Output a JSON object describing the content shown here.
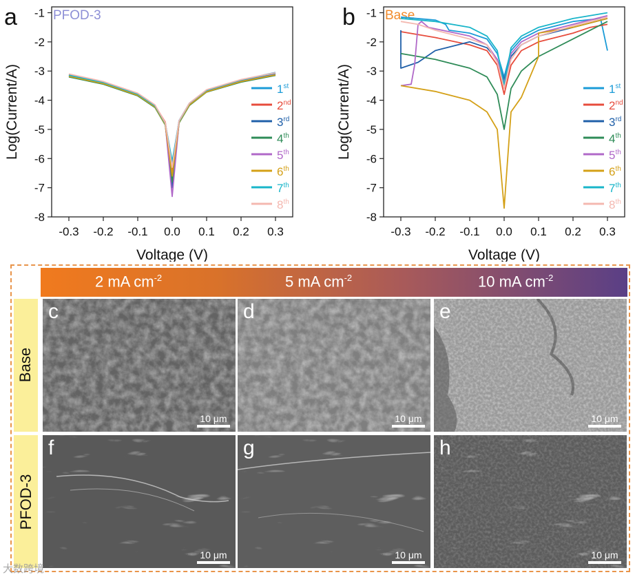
{
  "panels": {
    "a": {
      "letter": "a",
      "tag": "PFOD-3",
      "tag_color": "#8d8fd6"
    },
    "b": {
      "letter": "b",
      "tag": "Base",
      "tag_color": "#f08a2a"
    }
  },
  "chart_data": [
    {
      "type": "line",
      "panel": "a",
      "title": "PFOD-3",
      "xlabel": "Voltage (V)",
      "ylabel": "Log(Current/A)",
      "xlim": [
        -0.35,
        0.35
      ],
      "ylim": [
        -8,
        -0.8
      ],
      "xticks": [
        "-0.3",
        "-0.2",
        "-0.1",
        "0.0",
        "0.1",
        "0.2",
        "0.3"
      ],
      "yticks": [
        "-1",
        "-2",
        "-3",
        "-4",
        "-5",
        "-6",
        "-7",
        "-8"
      ],
      "legend_position": "right",
      "series": [
        {
          "name": "1st",
          "color": "#1b9bd7",
          "x": [
            -0.3,
            -0.2,
            -0.1,
            -0.05,
            -0.02,
            0.0,
            0.02,
            0.05,
            0.1,
            0.2,
            0.3
          ],
          "y": [
            -3.15,
            -3.4,
            -3.8,
            -4.2,
            -4.8,
            -6.2,
            -4.7,
            -4.1,
            -3.65,
            -3.3,
            -3.05
          ]
        },
        {
          "name": "2nd",
          "color": "#e74c3c",
          "x": [
            -0.3,
            -0.2,
            -0.1,
            -0.05,
            -0.02,
            0.0,
            0.02,
            0.05,
            0.1,
            0.2,
            0.3
          ],
          "y": [
            -3.12,
            -3.38,
            -3.78,
            -4.18,
            -4.75,
            -6.5,
            -4.72,
            -4.12,
            -3.68,
            -3.33,
            -3.1
          ]
        },
        {
          "name": "3rd",
          "color": "#1f5fa8",
          "x": [
            -0.3,
            -0.2,
            -0.1,
            -0.05,
            -0.02,
            0.0,
            0.02,
            0.05,
            0.1,
            0.2,
            0.3
          ],
          "y": [
            -3.17,
            -3.42,
            -3.82,
            -4.22,
            -4.82,
            -7.0,
            -4.75,
            -4.13,
            -3.67,
            -3.32,
            -3.08
          ]
        },
        {
          "name": "4th",
          "color": "#2e8b57",
          "x": [
            -0.3,
            -0.2,
            -0.1,
            -0.05,
            -0.02,
            0.0,
            0.02,
            0.05,
            0.1,
            0.2,
            0.3
          ],
          "y": [
            -3.2,
            -3.45,
            -3.85,
            -4.25,
            -4.85,
            -6.8,
            -4.78,
            -4.18,
            -3.72,
            -3.38,
            -3.15
          ]
        },
        {
          "name": "5th",
          "color": "#b068c8",
          "x": [
            -0.3,
            -0.2,
            -0.1,
            -0.05,
            -0.02,
            0.0,
            0.02,
            0.05,
            0.1,
            0.2,
            0.3
          ],
          "y": [
            -3.16,
            -3.41,
            -3.81,
            -4.21,
            -4.81,
            -7.3,
            -4.74,
            -4.14,
            -3.7,
            -3.35,
            -3.12
          ]
        },
        {
          "name": "6th",
          "color": "#d4a017",
          "x": [
            -0.3,
            -0.2,
            -0.1,
            -0.05,
            -0.02,
            0.0,
            0.02,
            0.05,
            0.1,
            0.2,
            0.3
          ],
          "y": [
            -3.18,
            -3.43,
            -3.83,
            -4.23,
            -4.83,
            -6.6,
            -4.76,
            -4.16,
            -3.71,
            -3.36,
            -3.13
          ]
        },
        {
          "name": "7th",
          "color": "#18b5c9",
          "x": [
            -0.3,
            -0.2,
            -0.1,
            -0.05,
            -0.02,
            0.0,
            0.02,
            0.05,
            0.1,
            0.2,
            0.3
          ],
          "y": [
            -3.14,
            -3.39,
            -3.79,
            -4.19,
            -4.79,
            -6.1,
            -4.73,
            -4.11,
            -3.66,
            -3.31,
            -3.07
          ]
        },
        {
          "name": "8th",
          "color": "#f4b8b0",
          "x": [
            -0.3,
            -0.2,
            -0.1,
            -0.05,
            -0.02,
            0.0,
            0.02,
            0.05,
            0.1,
            0.2,
            0.3
          ],
          "y": [
            -3.1,
            -3.36,
            -3.76,
            -4.16,
            -4.77,
            -6.3,
            -4.71,
            -4.1,
            -3.64,
            -3.29,
            -3.06
          ]
        }
      ]
    },
    {
      "type": "line",
      "panel": "b",
      "title": "Base",
      "xlabel": "Voltage (V)",
      "ylabel": "Log(Current/A)",
      "xlim": [
        -0.35,
        0.35
      ],
      "ylim": [
        -8,
        -0.8
      ],
      "xticks": [
        "-0.3",
        "-0.2",
        "-0.1",
        "0.0",
        "0.1",
        "0.2",
        "0.3"
      ],
      "yticks": [
        "-1",
        "-2",
        "-3",
        "-4",
        "-5",
        "-6",
        "-7",
        "-8"
      ],
      "legend_position": "right",
      "series": [
        {
          "name": "1st",
          "color": "#1b9bd7",
          "x": [
            -0.3,
            -0.2,
            -0.17,
            -0.16,
            -0.1,
            -0.05,
            -0.02,
            0.0,
            0.02,
            0.05,
            0.1,
            0.2,
            0.28,
            0.3
          ],
          "y": [
            -1.15,
            -1.25,
            -1.4,
            -1.6,
            -1.7,
            -1.9,
            -2.4,
            -3.2,
            -2.3,
            -1.9,
            -1.6,
            -1.3,
            -1.2,
            -2.3
          ]
        },
        {
          "name": "2nd",
          "color": "#e74c3c",
          "x": [
            -0.3,
            -0.2,
            -0.1,
            -0.05,
            -0.02,
            0.0,
            0.02,
            0.05,
            0.1,
            0.2,
            0.25,
            0.3
          ],
          "y": [
            -1.65,
            -1.85,
            -2.1,
            -2.3,
            -2.8,
            -3.8,
            -2.8,
            -2.3,
            -2.0,
            -1.7,
            -1.5,
            -1.4
          ]
        },
        {
          "name": "3rd",
          "color": "#1f5fa8",
          "x": [
            -0.3,
            -0.3,
            -0.25,
            -0.2,
            -0.1,
            -0.05,
            -0.02,
            0.0,
            0.02,
            0.05,
            0.1,
            0.2,
            0.3
          ],
          "y": [
            -1.6,
            -2.9,
            -2.7,
            -2.3,
            -2.0,
            -2.2,
            -2.6,
            -3.3,
            -2.5,
            -2.1,
            -1.8,
            -1.5,
            -1.2
          ]
        },
        {
          "name": "4th",
          "color": "#2e8b57",
          "x": [
            -0.3,
            -0.2,
            -0.1,
            -0.05,
            -0.02,
            0.0,
            0.02,
            0.05,
            0.1,
            0.2,
            0.3
          ],
          "y": [
            -2.4,
            -2.6,
            -2.9,
            -3.2,
            -3.8,
            -5.0,
            -3.6,
            -3.0,
            -2.5,
            -1.9,
            -1.3
          ]
        },
        {
          "name": "5th",
          "color": "#b068c8",
          "x": [
            -0.3,
            -0.27,
            -0.26,
            -0.25,
            -0.24,
            -0.22,
            -0.1,
            -0.05,
            -0.02,
            0.0,
            0.02,
            0.05,
            0.1,
            0.2,
            0.3
          ],
          "y": [
            -3.5,
            -3.45,
            -2.8,
            -1.4,
            -1.3,
            -1.5,
            -1.8,
            -2.1,
            -2.6,
            -3.4,
            -2.4,
            -2.0,
            -1.7,
            -1.4,
            -1.1
          ]
        },
        {
          "name": "6th",
          "color": "#d4a017",
          "x": [
            -0.3,
            -0.2,
            -0.1,
            -0.05,
            -0.02,
            0.0,
            0.02,
            0.05,
            0.1,
            0.1,
            0.2,
            0.3
          ],
          "y": [
            -3.5,
            -3.7,
            -4.0,
            -4.4,
            -5.0,
            -7.7,
            -4.4,
            -3.9,
            -2.5,
            -1.7,
            -1.5,
            -1.2
          ]
        },
        {
          "name": "7th",
          "color": "#18b5c9",
          "x": [
            -0.3,
            -0.2,
            -0.1,
            -0.05,
            -0.02,
            0.0,
            0.02,
            0.05,
            0.1,
            0.2,
            0.3
          ],
          "y": [
            -1.2,
            -1.3,
            -1.5,
            -1.8,
            -2.3,
            -3.5,
            -2.2,
            -1.8,
            -1.5,
            -1.2,
            -1.0
          ]
        },
        {
          "name": "8th",
          "color": "#f4b8b0",
          "x": [
            -0.3,
            -0.25,
            -0.2,
            -0.1,
            -0.05,
            -0.02,
            0.0,
            0.02,
            0.05,
            0.1,
            0.2,
            0.3
          ],
          "y": [
            -1.3,
            -1.4,
            -1.6,
            -1.9,
            -2.1,
            -2.7,
            -3.6,
            -2.6,
            -2.1,
            -1.8,
            -1.45,
            -1.15
          ]
        }
      ]
    }
  ],
  "sem": {
    "columns": [
      {
        "text": "2 mA cm",
        "sup": "-2"
      },
      {
        "text": "5 mA cm",
        "sup": "-2"
      },
      {
        "text": "10 mA cm",
        "sup": "-2"
      }
    ],
    "rows": [
      "Base",
      "PFOD-3"
    ],
    "images": [
      {
        "letter": "c",
        "scale": "10 μm"
      },
      {
        "letter": "d",
        "scale": "10 μm"
      },
      {
        "letter": "e",
        "scale": "10 μm"
      },
      {
        "letter": "f",
        "scale": "10 μm"
      },
      {
        "letter": "g",
        "scale": "10 μm"
      },
      {
        "letter": "h",
        "scale": "10 μm"
      }
    ]
  },
  "watermark": "大数跨境",
  "colors": {
    "frame": "#e8944a",
    "row_label_bg": "#fbef9a"
  }
}
